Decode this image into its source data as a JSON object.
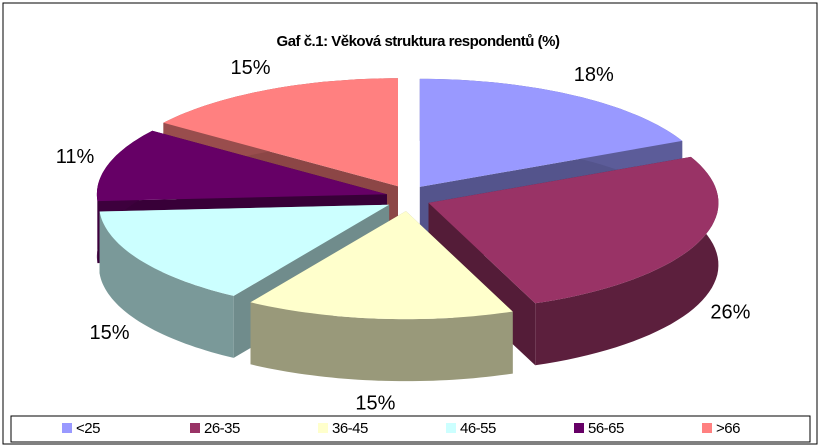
{
  "chart_data": {
    "type": "pie3d",
    "title": "Gaf č.1:  Věková struktura respondentů (%)",
    "categories": [
      "<25",
      "26-35",
      "36-45",
      "46-55",
      "56-65",
      ">66"
    ],
    "values": [
      18,
      26,
      15,
      15,
      11,
      15
    ],
    "value_labels": [
      "18%",
      "26%",
      "15%",
      "15%",
      "11%",
      "15%"
    ],
    "colors": [
      "#9999ff",
      "#993366",
      "#ffffcc",
      "#ccffff",
      "#660066",
      "#ff8080"
    ],
    "legend": "bottom"
  }
}
